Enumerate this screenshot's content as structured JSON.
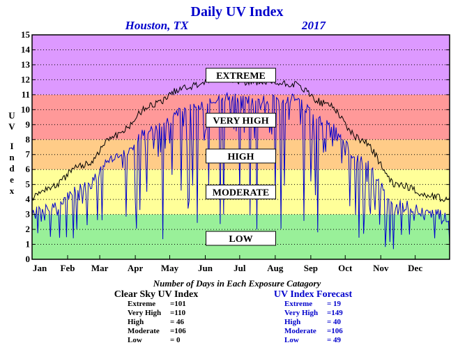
{
  "chart_data": {
    "type": "line",
    "title": "Daily UV Index",
    "location": "Houston, TX",
    "year": "2017",
    "ylabel": "UV Index",
    "ylim": [
      0,
      15
    ],
    "yticks": [
      0,
      1,
      2,
      3,
      4,
      5,
      6,
      7,
      8,
      9,
      10,
      11,
      12,
      13,
      14,
      15
    ],
    "xlim": [
      1,
      365
    ],
    "months": [
      "Jan",
      "Feb",
      "Mar",
      "Apr",
      "May",
      "Jun",
      "Jul",
      "Aug",
      "Sep",
      "Oct",
      "Nov",
      "Dec"
    ],
    "grid": true,
    "bands": [
      {
        "name": "LOW",
        "min": 0,
        "max": 3,
        "color": "#99f099"
      },
      {
        "name": "MODERATE",
        "min": 3,
        "max": 6,
        "color": "#ffff99"
      },
      {
        "name": "HIGH",
        "min": 6,
        "max": 8,
        "color": "#ffcc88"
      },
      {
        "name": "VERY HIGH",
        "min": 8,
        "max": 11,
        "color": "#ff9999"
      },
      {
        "name": "EXTREME",
        "min": 11,
        "max": 15,
        "color": "#dd99ff"
      }
    ],
    "category_labels": [
      {
        "text": "EXTREME",
        "y": 12.3
      },
      {
        "text": "VERY HIGH",
        "y": 9.3
      },
      {
        "text": "HIGH",
        "y": 6.9
      },
      {
        "text": "MODERATE",
        "y": 4.5
      },
      {
        "text": "LOW",
        "y": 1.4
      }
    ],
    "series": [
      {
        "name": "Clear Sky UV Index",
        "color": "#000000",
        "monthly_x": [
          1,
          15,
          46,
          74,
          105,
          135,
          166,
          196,
          227,
          258,
          288,
          319,
          349,
          365
        ],
        "monthly_values": [
          4.2,
          4.8,
          6.3,
          8.3,
          10.3,
          11.5,
          12.1,
          11.8,
          11.7,
          10.4,
          8.0,
          5.0,
          4.2,
          4.0
        ]
      },
      {
        "name": "UV Index Forecast",
        "color": "#0000cc",
        "monthly_x": [
          1,
          15,
          46,
          74,
          105,
          135,
          166,
          196,
          227,
          258,
          288,
          319,
          349,
          365
        ],
        "monthly_values": [
          3.2,
          3.4,
          4.8,
          6.8,
          8.6,
          10.0,
          10.8,
          10.6,
          10.7,
          9.2,
          6.6,
          3.7,
          3.1,
          2.8
        ]
      }
    ]
  },
  "stats": {
    "title": "Number of Days in Each Exposure Catagory",
    "clear_sky": {
      "title": "Clear Sky UV Index",
      "rows": [
        {
          "label": "Extreme",
          "value": "=101"
        },
        {
          "label": "Very High",
          "value": "=110"
        },
        {
          "label": "High",
          "value": "= 46"
        },
        {
          "label": "Moderate",
          "value": "=106"
        },
        {
          "label": "Low",
          "value": "=   0"
        }
      ]
    },
    "forecast": {
      "title": "UV Index Forecast",
      "rows": [
        {
          "label": "Extreme",
          "value": "= 19"
        },
        {
          "label": "Very High",
          "value": "=149"
        },
        {
          "label": "High",
          "value": "= 40"
        },
        {
          "label": "Moderate",
          "value": "=106"
        },
        {
          "label": "Low",
          "value": "= 49"
        }
      ]
    }
  }
}
